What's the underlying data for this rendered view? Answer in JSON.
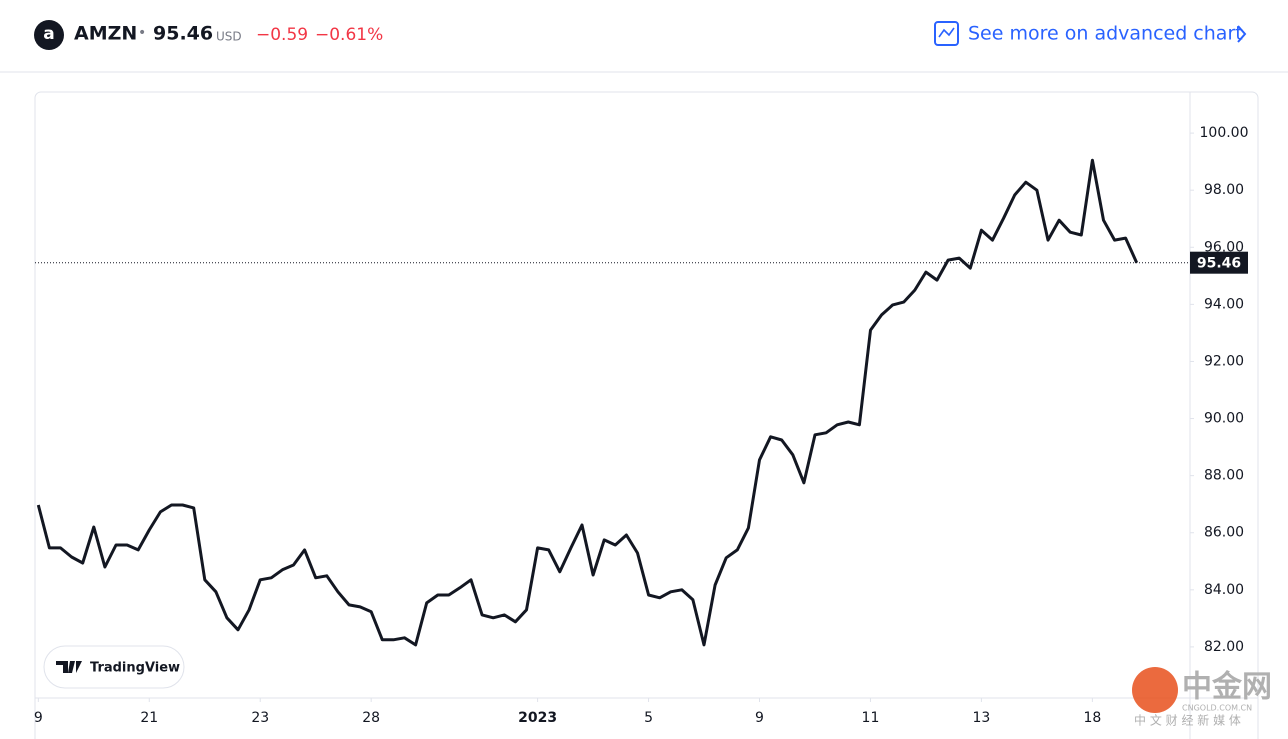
{
  "header": {
    "symbol": "AMZN",
    "separator": "•",
    "price": "95.46",
    "currency": "USD",
    "change": "−0.59",
    "change_percent": "−0.61%",
    "link": "See more on advanced chart"
  },
  "badge": "TradingView",
  "watermark": {
    "brand": "中金网",
    "site": "CNGOLD.COM.CN",
    "tagline": "中 文 财 经 新 媒 体"
  },
  "chart_data": {
    "type": "line",
    "color": "#131722",
    "values": [
      86.97,
      85.47,
      85.47,
      85.15,
      84.94,
      86.2,
      84.8,
      85.57,
      85.57,
      85.4,
      86.1,
      86.73,
      86.97,
      86.97,
      86.87,
      84.35,
      83.93,
      83.02,
      82.6,
      83.3,
      84.35,
      84.42,
      84.7,
      84.87,
      85.4,
      84.42,
      84.49,
      83.93,
      83.47,
      83.4,
      83.23,
      82.25,
      82.25,
      82.32,
      82.07,
      83.54,
      83.82,
      83.82,
      84.07,
      84.35,
      83.12,
      83.02,
      83.12,
      82.88,
      83.3,
      85.47,
      85.4,
      84.63,
      85.47,
      86.27,
      84.52,
      85.75,
      85.57,
      85.92,
      85.29,
      83.82,
      83.72,
      83.93,
      84.0,
      83.65,
      82.07,
      84.17,
      85.12,
      85.4,
      86.17,
      88.55,
      89.36,
      89.25,
      88.73,
      87.75,
      89.43,
      89.5,
      89.78,
      89.88,
      89.78,
      93.1,
      93.63,
      93.98,
      94.08,
      94.5,
      95.13,
      94.85,
      95.55,
      95.62,
      95.27,
      96.6,
      96.25,
      97.02,
      97.83,
      98.28,
      98.0,
      96.25,
      96.95,
      96.53,
      96.43,
      99.05,
      96.95,
      96.25,
      96.32,
      95.46
    ],
    "last_price": 95.46,
    "xlim": [
      -0.3,
      103.8
    ],
    "xticks": [
      {
        "value": 0,
        "label": "9"
      },
      {
        "value": 10,
        "label": "21"
      },
      {
        "value": 20,
        "label": "23"
      },
      {
        "value": 30,
        "label": "28"
      },
      {
        "value": 45,
        "label": "2023"
      },
      {
        "value": 55,
        "label": "5"
      },
      {
        "value": 65,
        "label": "9"
      },
      {
        "value": 75,
        "label": "11"
      },
      {
        "value": 85,
        "label": "13"
      },
      {
        "value": 95,
        "label": "18"
      }
    ],
    "ylim": [
      80.21,
      101.44
    ],
    "yticks": [
      {
        "value": 82,
        "label": "82.00"
      },
      {
        "value": 84,
        "label": "84.00"
      },
      {
        "value": 86,
        "label": "86.00"
      },
      {
        "value": 88,
        "label": "88.00"
      },
      {
        "value": 90,
        "label": "90.00"
      },
      {
        "value": 92,
        "label": "92.00"
      },
      {
        "value": 94,
        "label": "94.00"
      },
      {
        "value": 96,
        "label": "96.00"
      },
      {
        "value": 98,
        "label": "98.00"
      },
      {
        "value": 100,
        "label": "100.00"
      }
    ]
  }
}
